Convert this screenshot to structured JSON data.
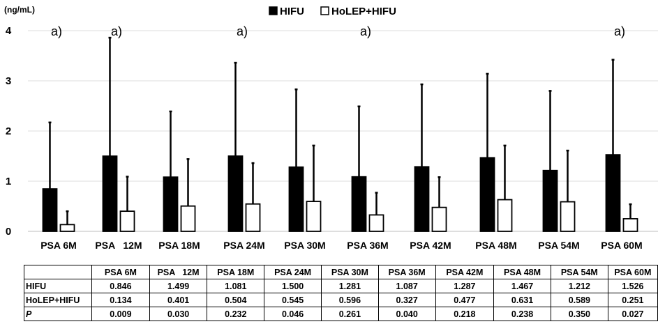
{
  "chart_data": {
    "type": "bar",
    "unit_label": "(ng/mL)",
    "ylim": [
      0,
      4
    ],
    "yticks": [
      "0",
      "1",
      "2",
      "3",
      "4"
    ],
    "grid": true,
    "legend_placement": "top-center",
    "categories": [
      "PSA 6M",
      "PSA   12M",
      "PSA 18M",
      "PSA 24M",
      "PSA 30M",
      "PSA 36M",
      "PSA 42M",
      "PSA 48M",
      "PSA 54M",
      "PSA 60M"
    ],
    "series": [
      {
        "name": "HIFU",
        "color": "#000000",
        "values": [
          0.846,
          1.499,
          1.081,
          1.5,
          1.281,
          1.087,
          1.287,
          1.467,
          1.212,
          1.526
        ],
        "error_upper": [
          2.17,
          3.86,
          2.39,
          3.36,
          2.83,
          2.49,
          2.93,
          3.14,
          2.8,
          3.42
        ]
      },
      {
        "name": "HoLEP+HIFU",
        "color": "#ffffff",
        "values": [
          0.134,
          0.401,
          0.504,
          0.545,
          0.596,
          0.327,
          0.477,
          0.631,
          0.589,
          0.251
        ],
        "error_upper": [
          0.4,
          1.09,
          1.44,
          1.36,
          1.71,
          0.77,
          1.08,
          1.71,
          1.61,
          0.54
        ]
      }
    ],
    "annotations": [
      "a)",
      "a)",
      "",
      "a)",
      "",
      "a)",
      "",
      "",
      "",
      "a)"
    ]
  },
  "table": {
    "columns": [
      "PSA 6M",
      "PSA   12M",
      "PSA 18M",
      "PSA 24M",
      "PSA 30M",
      "PSA 36M",
      "PSA 42M",
      "PSA 48M",
      "PSA 54M",
      "PSA 60M"
    ],
    "rows": [
      {
        "label": "HIFU",
        "cells": [
          "0.846",
          "1.499",
          "1.081",
          "1.500",
          "1.281",
          "1.087",
          "1.287",
          "1.467",
          "1.212",
          "1.526"
        ]
      },
      {
        "label": "HoLEP+HIFU",
        "cells": [
          "0.134",
          "0.401",
          "0.504",
          "0.545",
          "0.596",
          "0.327",
          "0.477",
          "0.631",
          "0.589",
          "0.251"
        ]
      },
      {
        "label": "P",
        "cells": [
          "0.009",
          "0.030",
          "0.232",
          "0.046",
          "0.261",
          "0.040",
          "0.218",
          "0.238",
          "0.350",
          "0.027"
        ]
      }
    ]
  }
}
